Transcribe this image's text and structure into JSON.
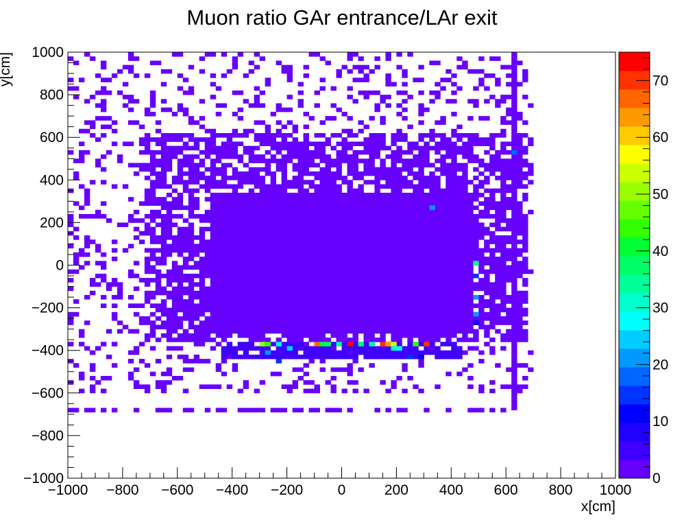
{
  "chart_data": {
    "type": "heatmap",
    "title": "Muon ratio GAr entrance/LAr exit",
    "xlabel": "x[cm]",
    "ylabel": "y[cm]",
    "xlim": [
      -1000,
      1000
    ],
    "ylim": [
      -1000,
      1000
    ],
    "x_ticks": [
      "−1000",
      "−800",
      "−600",
      "−400",
      "−200",
      "0",
      "200",
      "400",
      "600",
      "800",
      "1000"
    ],
    "y_ticks": [
      "−1000",
      "−800",
      "−600",
      "−400",
      "−200",
      "0",
      "200",
      "400",
      "600",
      "800",
      "1000"
    ],
    "z_ticks": [
      "0",
      "10",
      "20",
      "30",
      "40",
      "50",
      "60",
      "70"
    ],
    "z_range": [
      0,
      75
    ],
    "bin_width": 20,
    "colorscale": [
      "#6600ff",
      "#3f00ff",
      "#1f00ff",
      "#0000ff",
      "#0033ff",
      "#0066ff",
      "#0099ff",
      "#00ccff",
      "#00ffff",
      "#00ffcc",
      "#00ff99",
      "#00ff66",
      "#00ff33",
      "#33ff00",
      "#66ff00",
      "#99ff00",
      "#ccff00",
      "#ffff00",
      "#ffcc00",
      "#ff9900",
      "#ff6600",
      "#ff3300",
      "#ff0000"
    ],
    "regions": [
      {
        "label": "dense core",
        "x": [
          -480,
          480
        ],
        "y": [
          -320,
          340
        ],
        "z": 2,
        "fill_fraction": 1.0
      },
      {
        "label": "inner halo",
        "x": [
          -720,
          680
        ],
        "y": [
          -360,
          620
        ],
        "z": 1,
        "fill_fraction": 0.65
      },
      {
        "label": "outer halo",
        "x": [
          -1000,
          700
        ],
        "y": [
          -600,
          1000
        ],
        "z": 1,
        "fill_fraction": 0.2
      },
      {
        "label": "lower band",
        "x": [
          -440,
          440
        ],
        "y": [
          -440,
          -360
        ],
        "z": 4,
        "fill_fraction": 0.8
      },
      {
        "label": "row at y=-680",
        "x": [
          -1000,
          640
        ],
        "y": [
          -690,
          -670
        ],
        "z": 1,
        "fill_fraction": 0.55
      },
      {
        "label": "column at x=630",
        "x": [
          620,
          640
        ],
        "y": [
          -680,
          1000
        ],
        "z": 1,
        "fill_fraction": 1.0
      }
    ],
    "hot_bins": [
      {
        "x": -290,
        "y": -370,
        "z": 50
      },
      {
        "x": -270,
        "y": -370,
        "z": 45
      },
      {
        "x": -230,
        "y": -370,
        "z": 30
      },
      {
        "x": -190,
        "y": -390,
        "z": 25
      },
      {
        "x": -90,
        "y": -370,
        "z": 68
      },
      {
        "x": -70,
        "y": -370,
        "z": 40
      },
      {
        "x": -50,
        "y": -370,
        "z": 38
      },
      {
        "x": -10,
        "y": -370,
        "z": 35
      },
      {
        "x": 30,
        "y": -370,
        "z": 72
      },
      {
        "x": 70,
        "y": -370,
        "z": 37
      },
      {
        "x": 110,
        "y": -370,
        "z": 34
      },
      {
        "x": 150,
        "y": -370,
        "z": 70
      },
      {
        "x": 170,
        "y": -370,
        "z": 62
      },
      {
        "x": 190,
        "y": -370,
        "z": 55
      },
      {
        "x": 270,
        "y": -370,
        "z": 45
      },
      {
        "x": 310,
        "y": -370,
        "z": 70
      },
      {
        "x": 190,
        "y": -390,
        "z": 30
      },
      {
        "x": 210,
        "y": -390,
        "z": 28
      },
      {
        "x": 330,
        "y": 270,
        "z": 20
      },
      {
        "x": 490,
        "y": 10,
        "z": 35
      },
      {
        "x": 490,
        "y": -50,
        "z": 15
      },
      {
        "x": 490,
        "y": -150,
        "z": 20
      },
      {
        "x": 490,
        "y": -230,
        "z": 20
      },
      {
        "x": 490,
        "y": -270,
        "z": 12
      },
      {
        "x": 630,
        "y": 530,
        "z": 18
      },
      {
        "x": -270,
        "y": -410,
        "z": 20
      },
      {
        "x": -230,
        "y": -450,
        "z": 15
      },
      {
        "x": 250,
        "y": -430,
        "z": 15
      },
      {
        "x": 290,
        "y": -430,
        "z": 12
      }
    ]
  }
}
